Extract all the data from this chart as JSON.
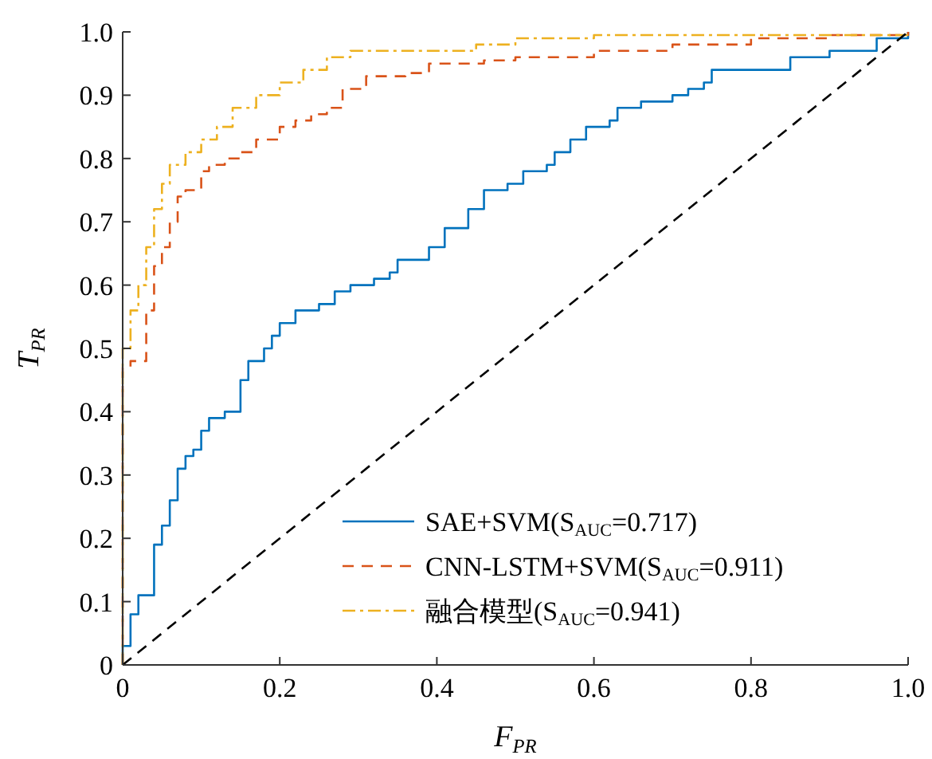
{
  "chart_data": {
    "type": "step",
    "xlabel": "F$_{PR}$",
    "ylabel": "T$_{PR}$",
    "xlim": [
      0,
      1
    ],
    "ylim": [
      0,
      1
    ],
    "xticks": [
      0,
      0.2,
      0.4,
      0.6,
      0.8,
      {
        "value": 1,
        "label": "1.0"
      }
    ],
    "yticks": [
      0,
      0.1,
      0.2,
      0.3,
      0.4,
      0.5,
      0.6,
      0.7,
      0.8,
      0.9,
      {
        "value": 1,
        "label": "1.0"
      }
    ],
    "grid": false,
    "legend": "bottom right",
    "marker": "none",
    "series": [
      {
        "name": "SAE+SVM(S$_{AUC}$=0.717)",
        "color": "#0072bd",
        "line_style": "solid",
        "x": [
          0,
          0,
          0.01,
          0.01,
          0.02,
          0.04,
          0.04,
          0.05,
          0.06,
          0.07,
          0.08,
          0.09,
          0.1,
          0.11,
          0.13,
          0.15,
          0.16,
          0.18,
          0.19,
          0.2,
          0.22,
          0.25,
          0.27,
          0.29,
          0.32,
          0.34,
          0.35,
          0.39,
          0.41,
          0.44,
          0.46,
          0.49,
          0.51,
          0.54,
          0.55,
          0.57,
          0.59,
          0.62,
          0.63,
          0.66,
          0.7,
          0.72,
          0.74,
          0.75,
          0.85,
          0.9,
          0.96,
          1
        ],
        "values": [
          0,
          0.03,
          0.04,
          0.08,
          0.11,
          0.11,
          0.19,
          0.22,
          0.26,
          0.31,
          0.33,
          0.34,
          0.37,
          0.39,
          0.4,
          0.45,
          0.48,
          0.5,
          0.52,
          0.54,
          0.56,
          0.57,
          0.59,
          0.6,
          0.61,
          0.62,
          0.64,
          0.66,
          0.69,
          0.72,
          0.75,
          0.76,
          0.78,
          0.79,
          0.81,
          0.83,
          0.85,
          0.86,
          0.88,
          0.89,
          0.9,
          0.91,
          0.92,
          0.94,
          0.96,
          0.97,
          0.99,
          1
        ]
      },
      {
        "name": "CNN-LSTM+SVM(S$_{AUC}$=0.911)",
        "color": "#d95319",
        "line_style": "dashed",
        "x": [
          0,
          0,
          0.01,
          0.03,
          0.03,
          0.04,
          0.04,
          0.05,
          0.06,
          0.07,
          0.08,
          0.1,
          0.11,
          0.13,
          0.15,
          0.17,
          0.2,
          0.22,
          0.24,
          0.26,
          0.28,
          0.31,
          0.36,
          0.39,
          0.46,
          0.5,
          0.6,
          0.7,
          0.8,
          0.9,
          1
        ],
        "values": [
          0,
          0.47,
          0.48,
          0.48,
          0.56,
          0.57,
          0.63,
          0.66,
          0.7,
          0.74,
          0.75,
          0.78,
          0.79,
          0.8,
          0.81,
          0.83,
          0.85,
          0.86,
          0.87,
          0.88,
          0.91,
          0.93,
          0.935,
          0.95,
          0.955,
          0.96,
          0.97,
          0.98,
          0.99,
          0.995,
          1
        ]
      },
      {
        "name": "融合模型(S$_{AUC}$=0.941)",
        "color": "#edb120",
        "line_style": "dashdot",
        "x": [
          0,
          0,
          0.01,
          0.02,
          0.03,
          0.04,
          0.05,
          0.06,
          0.08,
          0.1,
          0.12,
          0.14,
          0.17,
          0.2,
          0.23,
          0.26,
          0.29,
          0.4,
          0.45,
          0.5,
          0.6,
          1
        ],
        "values": [
          0,
          0.5,
          0.56,
          0.6,
          0.66,
          0.72,
          0.76,
          0.79,
          0.81,
          0.83,
          0.85,
          0.88,
          0.9,
          0.92,
          0.94,
          0.96,
          0.97,
          0.97,
          0.98,
          0.99,
          0.995,
          1
        ]
      },
      {
        "type": "line",
        "color": "#000000",
        "line_style": "dashed",
        "x": [
          0,
          1
        ],
        "values": [
          0,
          1
        ]
      }
    ]
  }
}
